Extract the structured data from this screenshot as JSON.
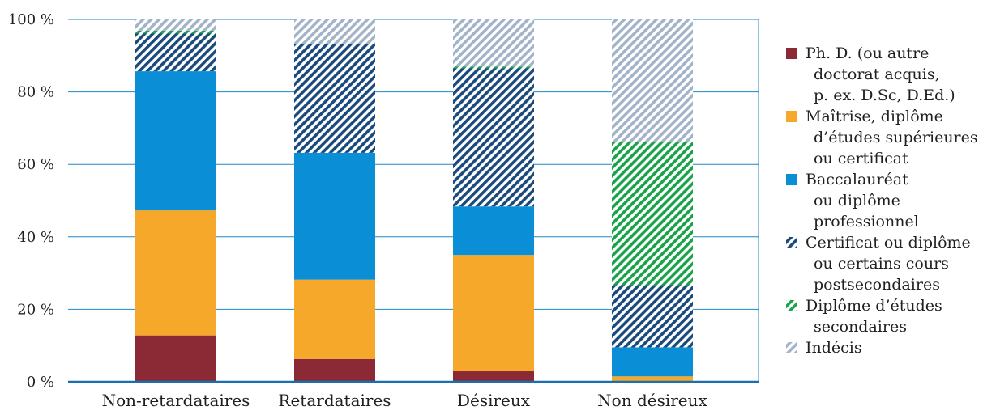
{
  "chart_data": {
    "type": "bar",
    "stacked": true,
    "categories": [
      "Non-retardataires",
      "Retardataires",
      "Désireux",
      "Non désireux"
    ],
    "ylim": [
      0,
      100
    ],
    "yticks": [
      0,
      20,
      40,
      60,
      80,
      100
    ],
    "ytick_labels": [
      "0 %",
      "20 %",
      "40 %",
      "60 %",
      "80 %",
      "100 %"
    ],
    "grid": true,
    "legend_position": "right",
    "series": [
      {
        "name": "Ph. D. (ou autre doctorat acquis, p. ex. D.Sc, D.Ed.)",
        "legend_lines": [
          "Ph. D. (ou autre",
          "doctorat acquis,",
          "p. ex. D.Sc, D.Ed.)"
        ],
        "color": "#8b2a35",
        "pattern": "solid",
        "values": [
          12.8,
          6.3,
          2.9,
          0.0
        ]
      },
      {
        "name": "Maîtrise, diplôme d’études supérieures ou certificat",
        "legend_lines": [
          "Maîtrise, diplôme",
          "d’études supérieures",
          "ou certificat"
        ],
        "color": "#f5a82a",
        "pattern": "solid",
        "values": [
          34.5,
          21.9,
          32.1,
          1.5
        ]
      },
      {
        "name": "Baccalauréat ou diplôme professionnel",
        "legend_lines": [
          "Baccalauréat",
          "ou diplôme",
          "professionnel"
        ],
        "color": "#0a8fd6",
        "pattern": "solid",
        "values": [
          38.4,
          35.0,
          13.4,
          8.0
        ]
      },
      {
        "name": "Certificat ou diplôme ou certains cours postsecondaires",
        "legend_lines": [
          "Certificat ou diplôme",
          "ou certains cours",
          "postsecondaires"
        ],
        "color": "#1b4a7c",
        "pattern": "hatch",
        "values": [
          10.4,
          30.0,
          38.1,
          17.2
        ]
      },
      {
        "name": "Diplôme d’études secondaires",
        "legend_lines": [
          "Diplôme d’études",
          "secondaires"
        ],
        "color": "#1aa34a",
        "pattern": "hatch",
        "values": [
          0.8,
          0.0,
          0.5,
          39.5
        ]
      },
      {
        "name": "Indécis",
        "legend_lines": [
          "Indécis"
        ],
        "color": "#a3b4c9",
        "pattern": "hatch",
        "values": [
          3.1,
          6.8,
          13.0,
          33.8
        ]
      }
    ]
  }
}
